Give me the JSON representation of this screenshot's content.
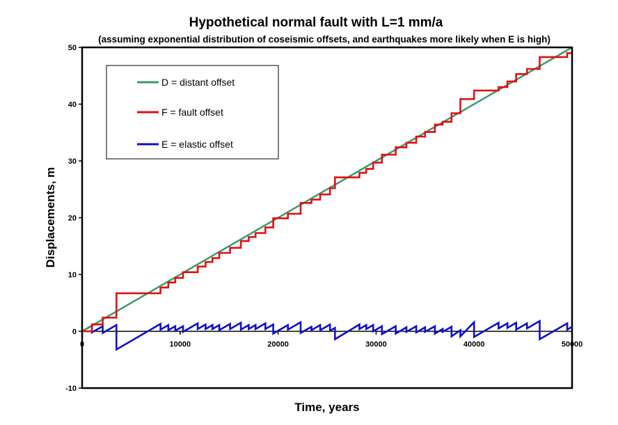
{
  "chart_data": {
    "type": "line",
    "title": "Hypothetical normal fault with L=1 mm/a",
    "subtitle": "(assuming exponential distribution of coseismic offsets, and earthquakes more likely when E is high)",
    "xlabel": "Time, years",
    "ylabel": "Displacements, m",
    "xlim": [
      0,
      50000
    ],
    "ylim": [
      -10,
      50
    ],
    "x_ticks": [
      0,
      10000,
      20000,
      30000,
      40000,
      50000
    ],
    "y_ticks": [
      -10,
      0,
      10,
      20,
      30,
      40,
      50
    ],
    "grid": false,
    "legend_position": "top-left",
    "colors": {
      "D": "#3a9a6e",
      "F": "#e01010",
      "E": "#1010c8"
    },
    "series": [
      {
        "key": "D",
        "name": "D = distant offset",
        "x": [
          0,
          50000
        ],
        "y": [
          0,
          50
        ]
      },
      {
        "key": "F",
        "name": "F = fault offset",
        "x": [
          0,
          1000,
          1000,
          2100,
          2100,
          3500,
          3500,
          8000,
          8000,
          8800,
          8800,
          9500,
          9500,
          10300,
          10300,
          11800,
          11800,
          12600,
          12600,
          13300,
          13300,
          14000,
          14000,
          15100,
          15100,
          16200,
          16200,
          17000,
          17000,
          17700,
          17700,
          18700,
          18700,
          19500,
          19500,
          21000,
          21000,
          22300,
          22300,
          23400,
          23400,
          24300,
          24300,
          25300,
          25300,
          25800,
          25800,
          28300,
          28300,
          29000,
          29000,
          29700,
          29700,
          30600,
          30600,
          32000,
          32000,
          33100,
          33100,
          34100,
          34100,
          35000,
          35000,
          36000,
          36000,
          36800,
          36800,
          37700,
          37700,
          38600,
          38600,
          40000,
          40000,
          42500,
          42500,
          43400,
          43400,
          44300,
          44300,
          45400,
          45400,
          46700,
          46700,
          49500,
          49500,
          50000
        ],
        "y": [
          0,
          0,
          1.2,
          1.2,
          2.4,
          2.4,
          6.7,
          6.7,
          7.7,
          7.7,
          8.6,
          8.6,
          9.4,
          9.4,
          10.4,
          10.4,
          11.4,
          11.4,
          12.2,
          12.2,
          12.9,
          12.9,
          13.8,
          13.8,
          14.7,
          14.7,
          15.9,
          15.9,
          16.6,
          16.6,
          17.3,
          17.3,
          18.3,
          18.3,
          19.9,
          19.9,
          20.7,
          20.7,
          22.6,
          22.6,
          23.2,
          23.2,
          24.1,
          24.1,
          25.2,
          25.2,
          27.1,
          27.1,
          27.9,
          27.9,
          28.6,
          28.6,
          29.7,
          29.7,
          31.1,
          31.1,
          32.4,
          32.4,
          33.2,
          33.2,
          34.3,
          34.3,
          35.1,
          35.1,
          36.4,
          36.4,
          36.9,
          36.9,
          38.4,
          38.4,
          40.9,
          40.9,
          42.4,
          42.4,
          43.0,
          43.0,
          44.0,
          44.0,
          45.3,
          45.3,
          46.2,
          46.2,
          48.3,
          48.3,
          49.0,
          49.0
        ]
      },
      {
        "key": "E",
        "name": "E = elastic offset",
        "x": [
          0,
          1000,
          1000,
          2100,
          2100,
          3500,
          3500,
          8000,
          8000,
          8800,
          8800,
          9500,
          9500,
          10300,
          10300,
          11800,
          11800,
          12600,
          12600,
          13300,
          13300,
          14000,
          14000,
          15100,
          15100,
          16200,
          16200,
          17000,
          17000,
          17700,
          17700,
          18700,
          18700,
          19500,
          19500,
          21000,
          21000,
          22300,
          22300,
          23400,
          23400,
          24300,
          24300,
          25300,
          25300,
          25800,
          25800,
          28300,
          28300,
          29000,
          29000,
          29700,
          29700,
          30600,
          30600,
          32000,
          32000,
          33100,
          33100,
          34100,
          34100,
          35000,
          35000,
          36000,
          36000,
          36800,
          36800,
          37700,
          37700,
          38600,
          38600,
          40000,
          40000,
          42500,
          42500,
          43400,
          43400,
          44300,
          44300,
          45400,
          45400,
          46700,
          46700,
          49500,
          49500,
          50000
        ],
        "y": [
          0,
          1.0,
          -0.2,
          0.9,
          -0.3,
          1.1,
          -3.2,
          1.3,
          0.3,
          1.1,
          0.2,
          0.9,
          0.1,
          0.9,
          -0.1,
          1.4,
          0.4,
          1.2,
          0.4,
          1.1,
          0.4,
          1.1,
          0.2,
          1.3,
          0.4,
          1.5,
          0.3,
          1.1,
          0.4,
          1.1,
          0.4,
          1.4,
          0.4,
          1.2,
          -0.4,
          1.1,
          0.3,
          1.6,
          -0.3,
          0.8,
          0.2,
          1.1,
          0.2,
          1.2,
          0.1,
          0.6,
          -1.4,
          1.2,
          0.4,
          1.1,
          0.4,
          1.1,
          0.0,
          0.9,
          -0.5,
          0.9,
          -0.4,
          0.7,
          -0.1,
          0.9,
          -0.2,
          0.7,
          -0.1,
          0.9,
          -0.4,
          0.4,
          -0.1,
          0.8,
          -0.9,
          0.2,
          -0.9,
          1.6,
          -1.0,
          1.5,
          0.5,
          1.4,
          0.6,
          1.5,
          0.3,
          1.4,
          0.5,
          1.8,
          -1.4,
          1.4,
          0.3,
          0.8
        ]
      }
    ]
  }
}
